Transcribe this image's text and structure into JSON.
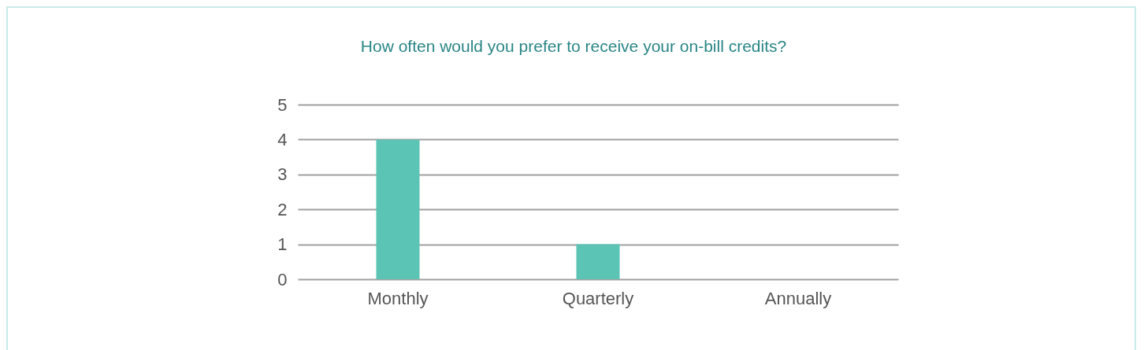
{
  "chart_data": {
    "type": "bar",
    "title": "How often would you prefer to receive your on-bill credits?",
    "categories": [
      "Monthly",
      "Quarterly",
      "Annually"
    ],
    "values": [
      4,
      1,
      0
    ],
    "color": "#5bc4b5",
    "ylim": [
      0,
      5
    ],
    "yticks": [
      0,
      1,
      2,
      3,
      4,
      5
    ],
    "grid": "y"
  }
}
